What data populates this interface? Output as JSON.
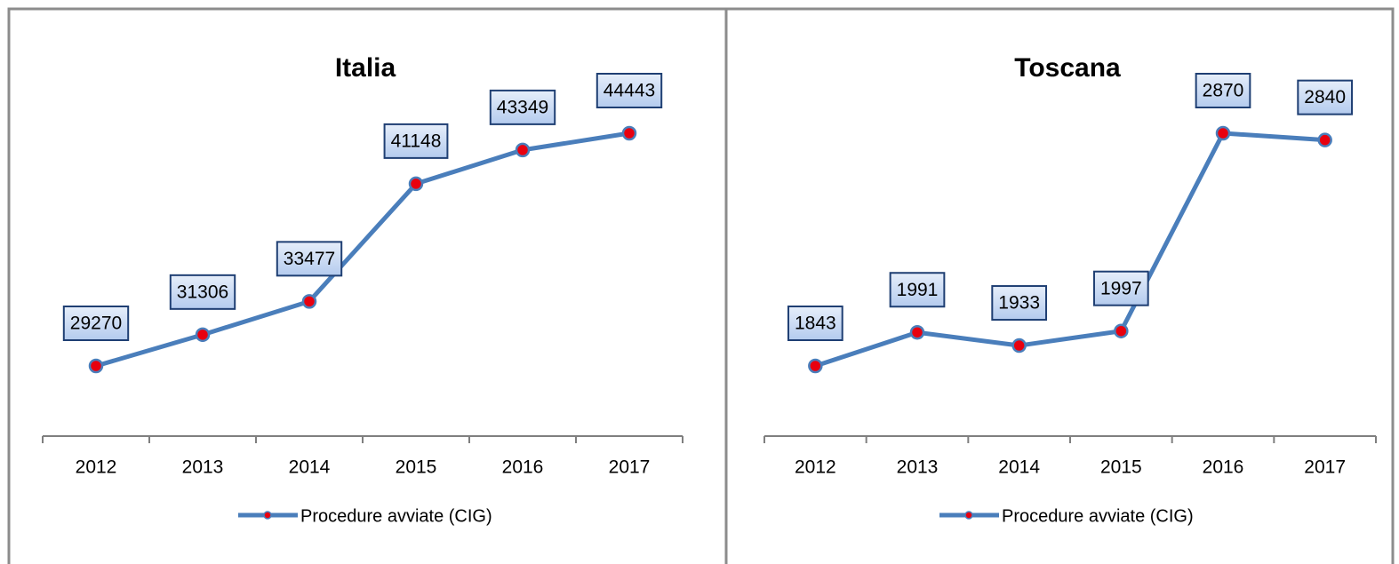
{
  "chart_data": [
    {
      "type": "line",
      "title": "Italia",
      "categories": [
        "2012",
        "2013",
        "2014",
        "2015",
        "2016",
        "2017"
      ],
      "series": [
        {
          "name": "Procedure avviate (CIG)",
          "color": "#4a7ebb",
          "marker_color": "#e8000f",
          "values": [
            29270,
            31306,
            33477,
            41148,
            43349,
            44443
          ]
        }
      ]
    },
    {
      "type": "line",
      "title": "Toscana",
      "categories": [
        "2012",
        "2013",
        "2014",
        "2015",
        "2016",
        "2017"
      ],
      "series": [
        {
          "name": "Procedure avviate (CIG)",
          "color": "#4a7ebb",
          "marker_color": "#e8000f",
          "values": [
            1843,
            1991,
            1933,
            1997,
            2870,
            2840
          ]
        }
      ]
    }
  ]
}
